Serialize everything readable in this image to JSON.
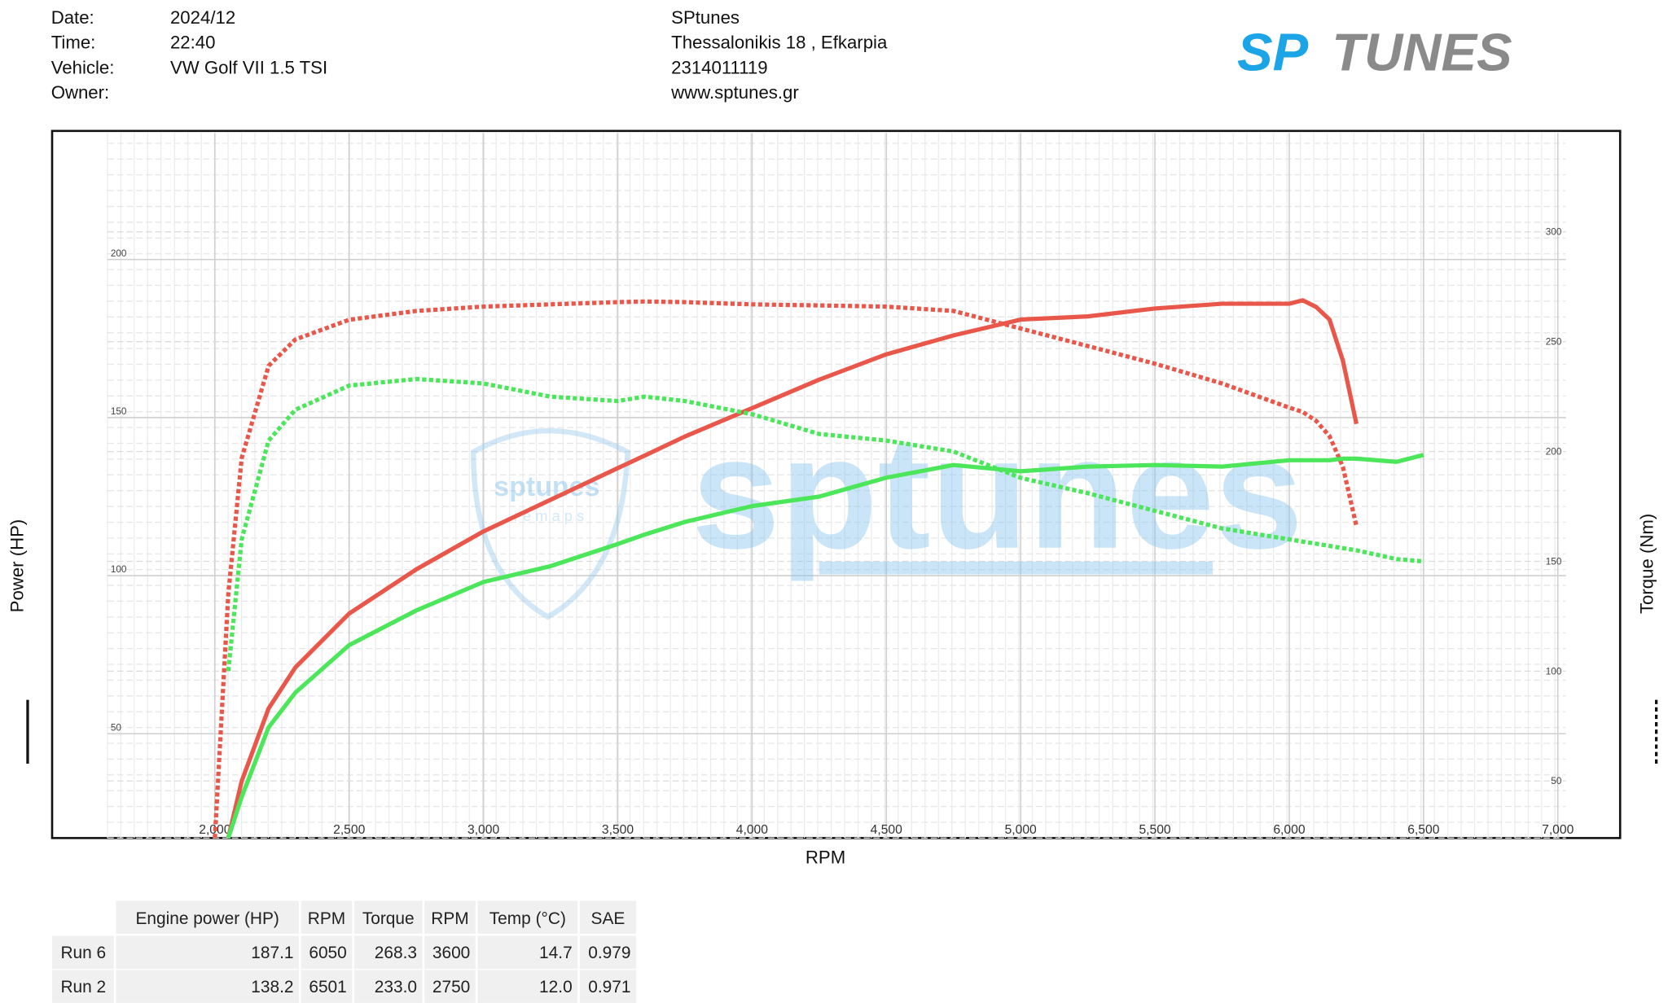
{
  "header": {
    "fields": [
      {
        "label": "Date:",
        "value": "2024/12"
      },
      {
        "label": "Time:",
        "value": "22:40"
      },
      {
        "label": "Vehicle:",
        "value": "VW Golf VII 1.5 TSI"
      },
      {
        "label": "Owner:"
      }
    ],
    "shop": [
      "SPtunes",
      "Thessalonikis 18 , Efkarpia",
      "2314011119",
      "www.sptunes.gr"
    ],
    "logo": {
      "left": "SP",
      "right": "TUNES"
    }
  },
  "watermark": {
    "text": "sptunes",
    "badge": "sptunes",
    "badge_sub": "r e m a p s"
  },
  "chart_data": {
    "type": "line",
    "x_label": "RPM",
    "y_label": "Power (HP)",
    "y2_label": "Torque (Nm)",
    "x": [
      2000,
      2050,
      2100,
      2200,
      2300,
      2500,
      2750,
      3000,
      3250,
      3500,
      3600,
      3750,
      4000,
      4250,
      4500,
      4750,
      5000,
      5250,
      5500,
      5750,
      6000,
      6050,
      6100,
      6150,
      6200,
      6250,
      6400,
      6500
    ],
    "series": [
      {
        "color": "#e8574a",
        "style": "solid",
        "values": [
          null,
          17,
          35,
          58,
          71,
          88,
          102,
          114,
          124,
          134,
          138,
          144,
          153,
          162,
          170,
          176,
          181,
          182,
          184.5,
          186,
          186,
          187.1,
          185,
          181,
          168,
          148,
          null,
          null
        ]
      },
      {
        "color": "#e8574a",
        "style": "dotted",
        "axis": "y2",
        "values": [
          24,
          135,
          197,
          239,
          251,
          260,
          264,
          266,
          267,
          268,
          268.3,
          268,
          267,
          266.5,
          266,
          264,
          256,
          248,
          240,
          231,
          220,
          218,
          214,
          207,
          193,
          166,
          null,
          null
        ]
      },
      {
        "color": "#4ce65a",
        "style": "solid",
        "values": [
          null,
          17,
          30,
          52,
          63,
          78,
          89,
          98,
          103,
          110,
          113,
          117,
          122,
          125,
          131,
          135,
          133,
          134.5,
          135,
          134.5,
          136.5,
          136.5,
          136.5,
          136.5,
          137,
          137,
          136,
          138.2
        ]
      },
      {
        "color": "#4ce65a",
        "style": "dotted",
        "axis": "y2",
        "values": [
          null,
          100,
          160,
          205,
          219,
          230,
          233,
          231,
          225,
          223,
          225,
          223,
          217,
          208,
          205,
          200,
          188,
          181,
          173,
          165,
          160,
          159,
          158,
          157,
          156,
          155,
          151,
          150
        ]
      }
    ],
    "xlim": [
      1600,
      7030
    ],
    "xticks": [
      {
        "value": 2000,
        "label": "2,000"
      },
      {
        "value": 2500,
        "label": "2,500"
      },
      {
        "value": 3000,
        "label": "3,000"
      },
      {
        "value": 3500,
        "label": "3,500"
      },
      {
        "value": 4000,
        "label": "4,000"
      },
      {
        "value": 4500,
        "label": "4,500"
      },
      {
        "value": 5000,
        "label": "5,000"
      },
      {
        "value": 5500,
        "label": "5,500"
      },
      {
        "value": 6000,
        "label": "6,000"
      },
      {
        "value": 6500,
        "label": "6,500"
      },
      {
        "value": 7000,
        "label": "7,000"
      }
    ],
    "ylim": [
      17,
      240
    ],
    "yticks": [
      50,
      100,
      150,
      200
    ],
    "y2lim": [
      24,
      345
    ],
    "y2ticks": [
      50,
      100,
      150,
      200,
      250,
      300
    ],
    "grid": true
  },
  "table": {
    "headers": [
      "Engine power (HP)",
      "RPM",
      "Torque",
      "RPM",
      "Temp (°C)",
      "SAE"
    ],
    "rows": [
      {
        "name": "Run 6",
        "cells": [
          "187.1",
          "6050",
          "268.3",
          "3600",
          "14.7",
          "0.979"
        ]
      },
      {
        "name": "Run 2",
        "cells": [
          "138.2",
          "6501",
          "233.0",
          "2750",
          "12.0",
          "0.971"
        ]
      }
    ]
  }
}
